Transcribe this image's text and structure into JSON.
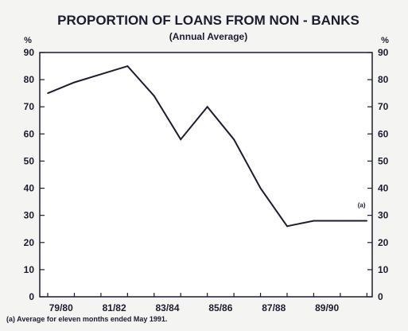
{
  "chart_data": {
    "type": "line",
    "title": "PROPORTION OF LOANS FROM NON - BANKS",
    "subtitle": "(Annual Average)",
    "ylabel_left": "%",
    "ylabel_right": "%",
    "ylim": [
      0,
      90
    ],
    "yticks": [
      0,
      10,
      20,
      30,
      40,
      50,
      60,
      70,
      80,
      90
    ],
    "x_tick_labels": [
      "79/80",
      "81/82",
      "83/84",
      "85/86",
      "87/88",
      "89/90"
    ],
    "x_tick_years": [
      1979.5,
      1981.5,
      1983.5,
      1985.5,
      1987.5,
      1989.5
    ],
    "xlim": [
      1978.7,
      1991.2
    ],
    "x": [
      1979,
      1980,
      1981,
      1982,
      1983,
      1984,
      1985,
      1986,
      1987,
      1988,
      1989,
      1990,
      1991
    ],
    "series": [
      {
        "values": [
          75,
          79,
          82,
          85,
          74,
          58,
          70,
          58,
          40,
          26,
          28,
          28,
          28
        ]
      }
    ],
    "annotation": {
      "text": "(a)",
      "x": 1990.8,
      "y": 33
    },
    "footnote": "(a) Average for eleven months ended May 1991.",
    "grid": false,
    "line_color": "#1b1c2e",
    "background_color": "#ffffff"
  }
}
